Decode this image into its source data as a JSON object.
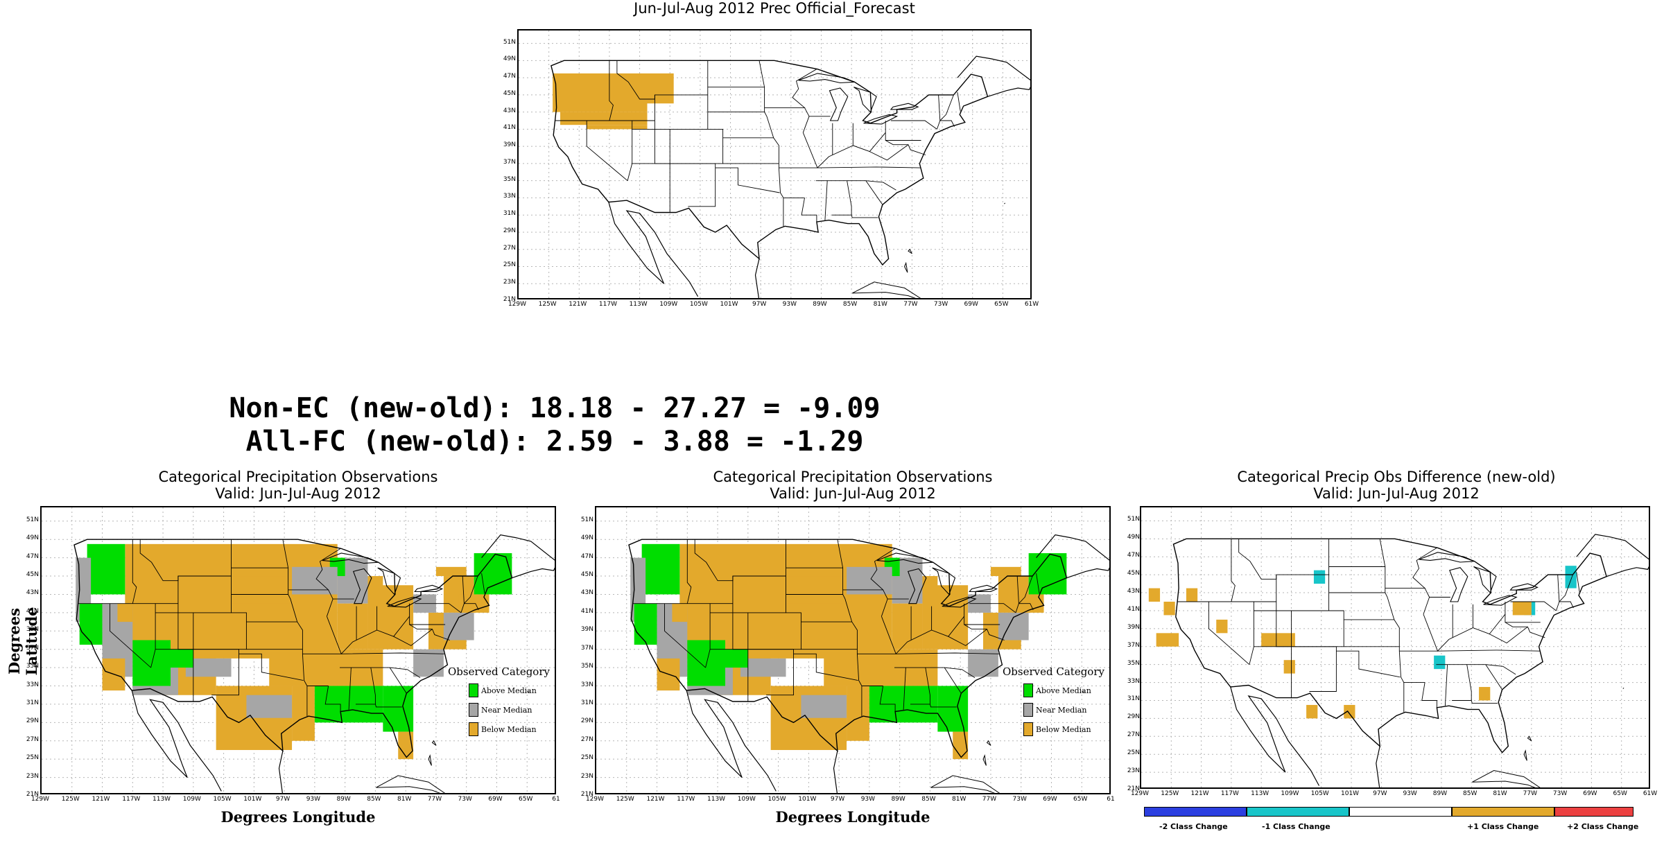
{
  "colors": {
    "above": "#00dd00",
    "near": "#a6a6a6",
    "below": "#e3a92c",
    "minus2": "#2b3fe0",
    "minus1": "#18c5c9",
    "plus1": "#e3a92c",
    "plus2": "#ec4040",
    "grid": "#b5b5b5"
  },
  "lat_labels": [
    "51N",
    "49N",
    "47N",
    "45N",
    "43N",
    "41N",
    "39N",
    "37N",
    "35N",
    "33N",
    "31N",
    "29N",
    "27N",
    "25N",
    "23N",
    "21N"
  ],
  "lon_labels": [
    "129W",
    "125W",
    "121W",
    "117W",
    "113W",
    "109W",
    "105W",
    "101W",
    "97W",
    "93W",
    "89W",
    "85W",
    "81W",
    "77W",
    "73W",
    "69W",
    "65W",
    "61W"
  ],
  "lon_labels_short": [
    "129W",
    "125W",
    "121W",
    "117W",
    "113W",
    "109W",
    "105W",
    "101W",
    "97W",
    "93W",
    "89W",
    "85W",
    "81W",
    "77W",
    "73W",
    "69W",
    "65W",
    "61"
  ],
  "top_map": {
    "title": "Jun-Jul-Aug 2012 Prec Official_Forecast"
  },
  "stats": {
    "line1": "Non-EC (new-old): 18.18 - 27.27 = -9.09",
    "line2": "All-FC (new-old): 2.59 - 3.88 = -1.29"
  },
  "obs_old": {
    "title1": "Categorical Precipitation Observations",
    "title2": "Valid: Jun-Jul-Aug 2012",
    "ylabel": "Degrees Latitude",
    "xlabel": "Degrees Longitude",
    "legend_title": "Observed Category",
    "legend": [
      "Above Median",
      "Near Median",
      "Below Median"
    ]
  },
  "obs_new": {
    "title1": "Categorical Precipitation Observations",
    "title2": "Valid: Jun-Jul-Aug 2012",
    "xlabel": "Degrees Longitude",
    "legend_title": "Observed Category",
    "legend": [
      "Above Median",
      "Near Median",
      "Below Median"
    ]
  },
  "diff_map": {
    "title1": "Categorical Precip Obs Difference (new-old)",
    "title2": "Valid: Jun-Jul-Aug 2012",
    "legend": [
      "-2 Class Change",
      "-1 Class Change",
      "",
      "+1 Class Change",
      "+2 Class Change"
    ]
  }
}
